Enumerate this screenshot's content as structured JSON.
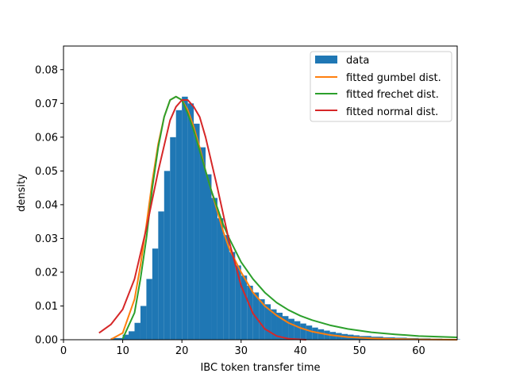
{
  "chart_data": {
    "type": "histogram",
    "xlabel": "IBC token transfer time",
    "ylabel": "density",
    "xlim": [
      0,
      66.5
    ],
    "ylim": [
      0,
      0.087
    ],
    "xticks": [
      "0",
      "10",
      "20",
      "30",
      "40",
      "50",
      "60"
    ],
    "yticks": [
      "0.00",
      "0.01",
      "0.02",
      "0.03",
      "0.04",
      "0.05",
      "0.06",
      "0.07",
      "0.08"
    ],
    "grid": false,
    "legend_position": "top-right",
    "histogram": {
      "name": "data",
      "color": "#1f77b4",
      "bins": [
        {
          "x": 8,
          "y": 0.0005
        },
        {
          "x": 10,
          "y": 0.0015
        },
        {
          "x": 11,
          "y": 0.0025
        },
        {
          "x": 12,
          "y": 0.005
        },
        {
          "x": 13,
          "y": 0.01
        },
        {
          "x": 14,
          "y": 0.018
        },
        {
          "x": 15,
          "y": 0.027
        },
        {
          "x": 16,
          "y": 0.038
        },
        {
          "x": 17,
          "y": 0.05
        },
        {
          "x": 18,
          "y": 0.06
        },
        {
          "x": 19,
          "y": 0.068
        },
        {
          "x": 20,
          "y": 0.072
        },
        {
          "x": 21,
          "y": 0.07
        },
        {
          "x": 22,
          "y": 0.064
        },
        {
          "x": 23,
          "y": 0.057
        },
        {
          "x": 24,
          "y": 0.049
        },
        {
          "x": 25,
          "y": 0.042
        },
        {
          "x": 26,
          "y": 0.036
        },
        {
          "x": 27,
          "y": 0.031
        },
        {
          "x": 28,
          "y": 0.026
        },
        {
          "x": 29,
          "y": 0.022
        },
        {
          "x": 30,
          "y": 0.019
        },
        {
          "x": 31,
          "y": 0.016
        },
        {
          "x": 32,
          "y": 0.014
        },
        {
          "x": 33,
          "y": 0.012
        },
        {
          "x": 34,
          "y": 0.0105
        },
        {
          "x": 35,
          "y": 0.009
        },
        {
          "x": 36,
          "y": 0.008
        },
        {
          "x": 37,
          "y": 0.007
        },
        {
          "x": 38,
          "y": 0.0062
        },
        {
          "x": 39,
          "y": 0.0055
        },
        {
          "x": 40,
          "y": 0.0048
        },
        {
          "x": 41,
          "y": 0.0042
        },
        {
          "x": 42,
          "y": 0.0036
        },
        {
          "x": 43,
          "y": 0.0031
        },
        {
          "x": 44,
          "y": 0.0027
        },
        {
          "x": 45,
          "y": 0.0023
        },
        {
          "x": 46,
          "y": 0.002
        },
        {
          "x": 47,
          "y": 0.0017
        },
        {
          "x": 48,
          "y": 0.0015
        },
        {
          "x": 49,
          "y": 0.0013
        },
        {
          "x": 50,
          "y": 0.0011
        },
        {
          "x": 52,
          "y": 0.0009
        },
        {
          "x": 54,
          "y": 0.0007
        },
        {
          "x": 56,
          "y": 0.0006
        },
        {
          "x": 58,
          "y": 0.0005
        },
        {
          "x": 60,
          "y": 0.0004
        },
        {
          "x": 62,
          "y": 0.0003
        },
        {
          "x": 64,
          "y": 0.0002
        },
        {
          "x": 66,
          "y": 0.0001
        }
      ]
    },
    "series": [
      {
        "name": "fitted gumbel dist.",
        "color": "#ff7f0e",
        "x": [
          8,
          10,
          12,
          13,
          14,
          15,
          16,
          17,
          18,
          19,
          20,
          21,
          22,
          23,
          24,
          25,
          26,
          27,
          28,
          30,
          32,
          34,
          36,
          38,
          40,
          42,
          45,
          48,
          52,
          56,
          60,
          66.5
        ],
        "y": [
          0.0001,
          0.002,
          0.012,
          0.022,
          0.034,
          0.047,
          0.058,
          0.066,
          0.071,
          0.072,
          0.071,
          0.068,
          0.063,
          0.057,
          0.05,
          0.044,
          0.038,
          0.032,
          0.027,
          0.02,
          0.014,
          0.01,
          0.0072,
          0.005,
          0.0035,
          0.0024,
          0.0014,
          0.0008,
          0.0004,
          0.0002,
          0.0001,
          0.0
        ]
      },
      {
        "name": "fitted frechet dist.",
        "color": "#2ca02c",
        "x": [
          10,
          12,
          13,
          14,
          15,
          16,
          17,
          18,
          19,
          20,
          21,
          22,
          23,
          24,
          25,
          26,
          27,
          28,
          30,
          32,
          34,
          36,
          38,
          40,
          42,
          45,
          48,
          52,
          56,
          60,
          66.5
        ],
        "y": [
          0.0003,
          0.008,
          0.018,
          0.03,
          0.045,
          0.057,
          0.066,
          0.071,
          0.072,
          0.071,
          0.067,
          0.062,
          0.056,
          0.05,
          0.044,
          0.039,
          0.034,
          0.03,
          0.023,
          0.018,
          0.014,
          0.011,
          0.0088,
          0.0071,
          0.0058,
          0.0043,
          0.0032,
          0.0022,
          0.0016,
          0.0011,
          0.0007
        ]
      },
      {
        "name": "fitted normal dist.",
        "color": "#d62728",
        "x": [
          6,
          8,
          10,
          12,
          14,
          16,
          18,
          19,
          20,
          21,
          22,
          23,
          24,
          26,
          28,
          30,
          32,
          34,
          36,
          38,
          40,
          41
        ],
        "y": [
          0.002,
          0.0045,
          0.009,
          0.018,
          0.033,
          0.05,
          0.065,
          0.069,
          0.071,
          0.071,
          0.069,
          0.066,
          0.06,
          0.045,
          0.029,
          0.016,
          0.0078,
          0.0032,
          0.0011,
          0.0003,
          0.0001,
          0.0
        ]
      }
    ]
  }
}
